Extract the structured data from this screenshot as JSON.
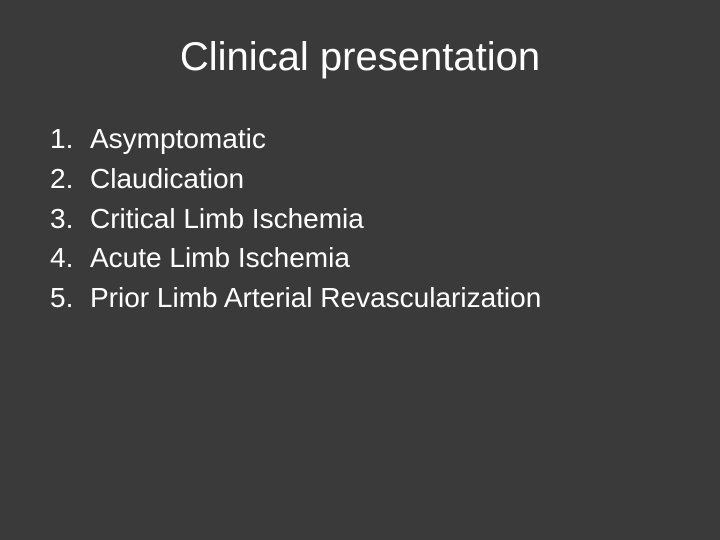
{
  "slide": {
    "title": "Clinical presentation",
    "items": [
      {
        "number": "1.",
        "text": "Asymptomatic"
      },
      {
        "number": "2.",
        "text": "Claudication"
      },
      {
        "number": "3.",
        "text": "Critical Limb Ischemia"
      },
      {
        "number": "4.",
        "text": "Acute Limb Ischemia"
      },
      {
        "number": "5.",
        "text": "Prior Limb Arterial Revascularization"
      }
    ],
    "background_color": "#3a3a3a",
    "text_color": "#ffffff",
    "title_fontsize": 40,
    "item_fontsize": 28,
    "font_family": "Arial, Helvetica, sans-serif"
  }
}
